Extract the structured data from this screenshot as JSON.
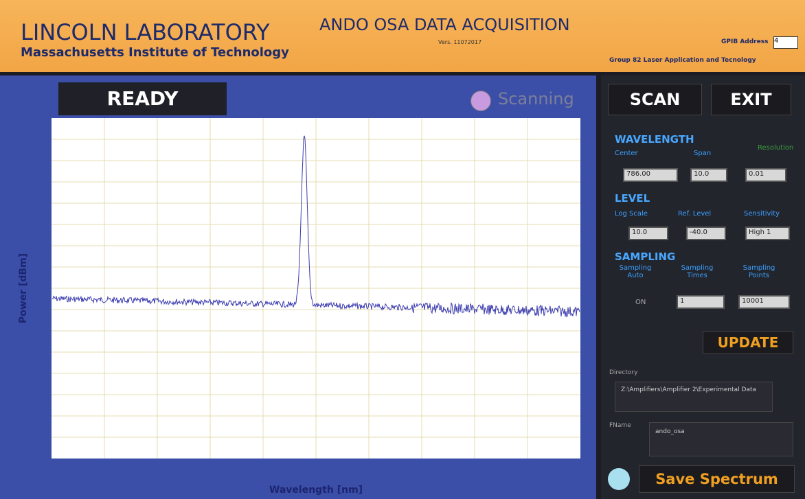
{
  "header": {
    "title": "LINCOLN LABORATORY",
    "subtitle": "Massachusetts Institute of Technology",
    "app_title": "ANDO OSA DATA ACQUISITION",
    "version": "Vers. 11072017",
    "gpib_label": "GPIB Address",
    "gpib_value": "4",
    "group": "Group 82 Laser Application and Tecnology"
  },
  "status": {
    "state": "READY",
    "indicator": "Scanning"
  },
  "plot": {
    "xlabel": "Wavelength [nm]",
    "ylabel": "Power [dBm]"
  },
  "controls": {
    "scan": "SCAN",
    "exit": "EXIT",
    "wavelength": {
      "title": "WAVELENGTH",
      "center_label": "Center",
      "center": "786.00",
      "span_label": "Span",
      "span": "10.0",
      "resolution_label": "Resolution",
      "resolution": "0.01"
    },
    "level": {
      "title": "LEVEL",
      "log_scale_label": "Log Scale",
      "log_scale": "10.0",
      "ref_level_label": "Ref. Level",
      "ref_level": "-40.0",
      "sensitivity_label": "Sensitivity",
      "sensitivity": "High 1"
    },
    "sampling": {
      "title": "SAMPLING",
      "auto_label": "Sampling Auto",
      "auto": "ON",
      "times_label": "Sampling Times",
      "times": "1",
      "points_label": "Sampling Points",
      "points": "10001"
    },
    "update": "UPDATE",
    "directory_label": "Directory",
    "directory": "Z:\\Amplifiers\\Amplifier 2\\Experimental Data",
    "fname_label": "FName",
    "fname": "ando_osa",
    "save": "Save Spectrum"
  }
}
